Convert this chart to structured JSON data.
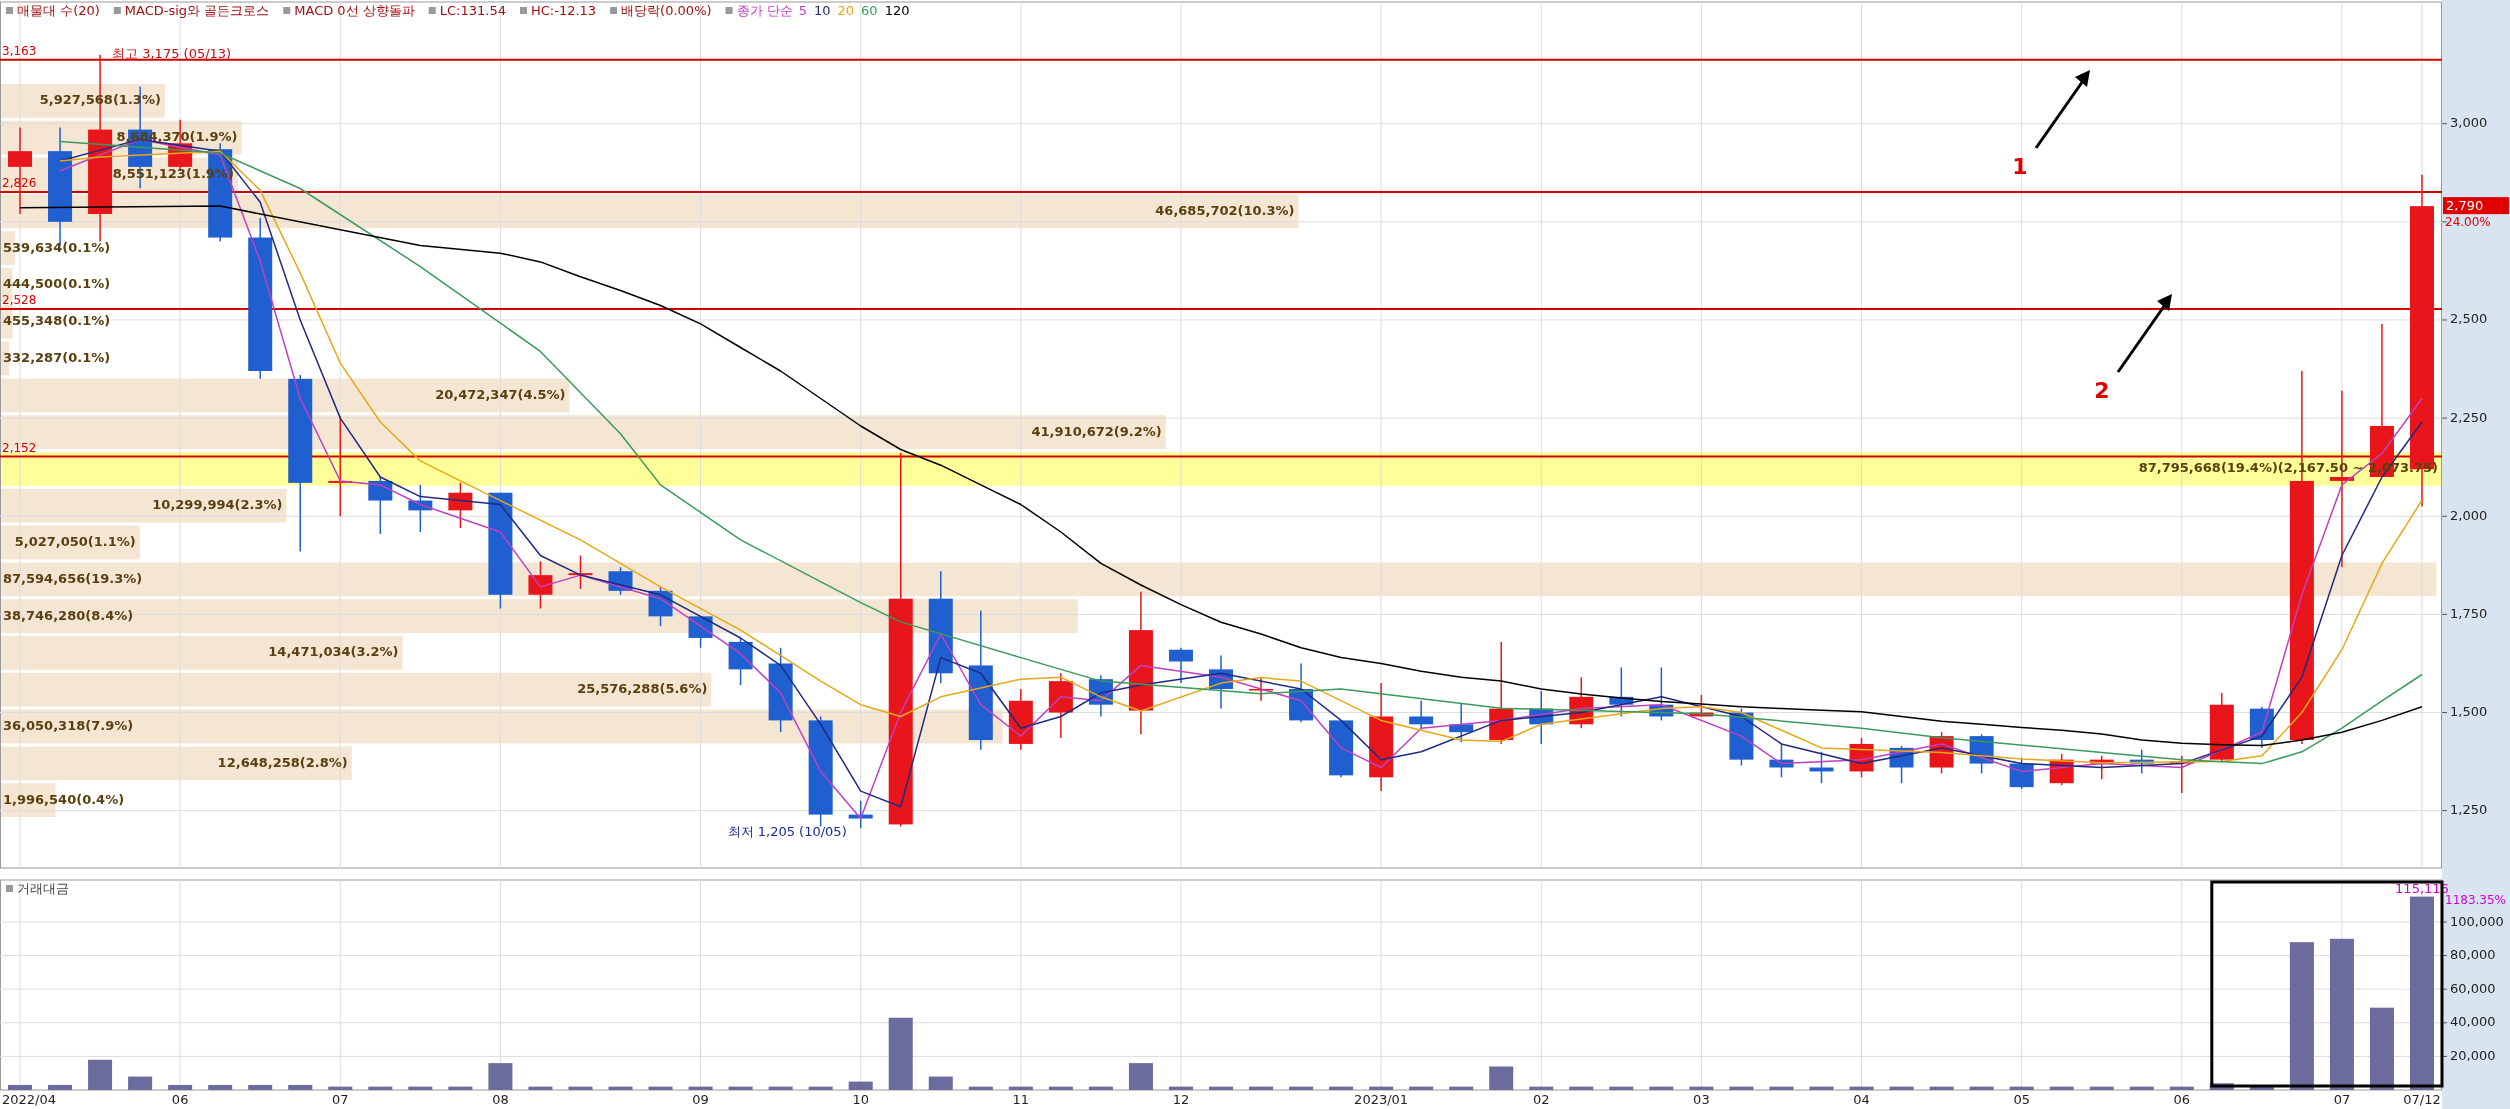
{
  "chart_data": [
    {
      "type": "candlestick",
      "categories": [
        null,
        null,
        null,
        null,
        null,
        null,
        null,
        null,
        null,
        null,
        null,
        null,
        null,
        null,
        null,
        null,
        null,
        null,
        null,
        null,
        null,
        null,
        null,
        null,
        null,
        null,
        null,
        null,
        null,
        null,
        null,
        null,
        null,
        null,
        null,
        null,
        null,
        null,
        null,
        null,
        null,
        null,
        null,
        null,
        null,
        null,
        null,
        null,
        null,
        null,
        null,
        null,
        null,
        null,
        null,
        null,
        null,
        null,
        null,
        null,
        null
      ],
      "ohlc": [
        [
          2890,
          2990,
          2770,
          2930
        ],
        [
          2930,
          2990,
          2690,
          2750
        ],
        [
          2770,
          3175,
          2700,
          2985
        ],
        [
          2985,
          3095,
          2835,
          2890
        ],
        [
          2890,
          3010,
          2880,
          2950
        ],
        [
          2935,
          2950,
          2700,
          2710
        ],
        [
          2710,
          2760,
          2350,
          2370
        ],
        [
          2350,
          2360,
          1910,
          2085
        ],
        [
          2085,
          2255,
          2000,
          2090
        ],
        [
          2090,
          2100,
          1955,
          2040
        ],
        [
          2040,
          2080,
          1960,
          2015
        ],
        [
          2015,
          2085,
          1970,
          2060
        ],
        [
          2060,
          2060,
          1765,
          1800
        ],
        [
          1800,
          1885,
          1765,
          1850
        ],
        [
          1850,
          1900,
          1815,
          1855
        ],
        [
          1860,
          1870,
          1800,
          1810
        ],
        [
          1810,
          1820,
          1720,
          1745
        ],
        [
          1745,
          1745,
          1665,
          1690
        ],
        [
          1680,
          1690,
          1570,
          1610
        ],
        [
          1625,
          1665,
          1450,
          1480
        ],
        [
          1480,
          1490,
          1210,
          1240
        ],
        [
          1240,
          1275,
          1205,
          1230
        ],
        [
          1215,
          2162,
          1210,
          1790
        ],
        [
          1790,
          1860,
          1575,
          1600
        ],
        [
          1620,
          1760,
          1405,
          1430
        ],
        [
          1420,
          1560,
          1405,
          1530
        ],
        [
          1500,
          1600,
          1435,
          1580
        ],
        [
          1585,
          1595,
          1490,
          1520
        ],
        [
          1505,
          1808,
          1445,
          1710
        ],
        [
          1660,
          1665,
          1575,
          1630
        ],
        [
          1610,
          1645,
          1510,
          1560
        ],
        [
          1560,
          1590,
          1530,
          1560
        ],
        [
          1560,
          1625,
          1475,
          1480
        ],
        [
          1480,
          1480,
          1335,
          1340
        ],
        [
          1335,
          1575,
          1300,
          1490
        ],
        [
          1490,
          1530,
          1460,
          1470
        ],
        [
          1470,
          1525,
          1425,
          1450
        ],
        [
          1430,
          1680,
          1420,
          1510
        ],
        [
          1510,
          1555,
          1420,
          1470
        ],
        [
          1470,
          1590,
          1460,
          1540
        ],
        [
          1540,
          1615,
          1490,
          1520
        ],
        [
          1520,
          1615,
          1480,
          1490
        ],
        [
          1490,
          1545,
          1490,
          1500
        ],
        [
          1500,
          1510,
          1365,
          1380
        ],
        [
          1380,
          1420,
          1335,
          1360
        ],
        [
          1360,
          1400,
          1320,
          1350
        ],
        [
          1350,
          1435,
          1335,
          1420
        ],
        [
          1410,
          1415,
          1320,
          1360
        ],
        [
          1360,
          1450,
          1345,
          1440
        ],
        [
          1440,
          1445,
          1345,
          1370
        ],
        [
          1370,
          1385,
          1305,
          1310
        ],
        [
          1320,
          1395,
          1315,
          1380
        ],
        [
          1370,
          1390,
          1330,
          1380
        ],
        [
          1380,
          1405,
          1345,
          1370
        ],
        [
          1370,
          1390,
          1295,
          1375
        ],
        [
          1380,
          1550,
          1375,
          1520
        ],
        [
          1510,
          1515,
          1410,
          1430
        ],
        [
          1430,
          2370,
          1420,
          2090
        ],
        [
          2090,
          2320,
          1870,
          2100
        ],
        [
          2100,
          2490,
          2100,
          2230
        ],
        [
          2120,
          2870,
          2025,
          2790
        ]
      ],
      "colors": [
        "#e8161b",
        "#1f5fd0",
        "#e8161b",
        "#1f5fd0",
        "#e8161b",
        "#1f5fd0",
        "#1f5fd0",
        "#1f5fd0",
        "#e8161b",
        "#1f5fd0",
        "#1f5fd0",
        "#e8161b",
        "#1f5fd0",
        "#e8161b",
        "#e8161b",
        "#1f5fd0",
        "#1f5fd0",
        "#1f5fd0",
        "#1f5fd0",
        "#1f5fd0",
        "#1f5fd0",
        "#1f5fd0",
        "#e8161b",
        "#1f5fd0",
        "#1f5fd0",
        "#e8161b",
        "#e8161b",
        "#1f5fd0",
        "#e8161b",
        "#1f5fd0",
        "#1f5fd0",
        "#e8161b",
        "#1f5fd0",
        "#1f5fd0",
        "#e8161b",
        "#1f5fd0",
        "#1f5fd0",
        "#e8161b",
        "#1f5fd0",
        "#e8161b",
        "#1f5fd0",
        "#1f5fd0",
        "#e8161b",
        "#1f5fd0",
        "#1f5fd0",
        "#1f5fd0",
        "#e8161b",
        "#1f5fd0",
        "#e8161b",
        "#1f5fd0",
        "#1f5fd0",
        "#e8161b",
        "#e8161b",
        "#1f5fd0",
        "#e8161b",
        "#e8161b",
        "#1f5fd0",
        "#e8161b",
        "#e8161b",
        "#e8161b",
        "#e8161b"
      ],
      "value_labels": [
        null,
        null,
        null,
        null,
        null,
        null,
        null,
        null,
        null,
        null,
        null,
        null,
        null,
        null,
        null,
        null,
        null,
        null,
        null,
        null,
        null,
        null,
        null,
        null,
        null,
        null,
        null,
        null,
        null,
        null,
        null,
        null,
        null,
        null,
        null,
        null,
        null,
        null,
        null,
        null,
        null,
        null,
        null,
        null,
        null,
        null,
        null,
        null,
        null,
        null,
        null,
        null,
        null,
        null,
        null,
        null,
        null,
        null,
        null,
        null,
        "2,790"
      ],
      "ylim": [
        1104,
        3310
      ],
      "yticks": [
        {
          "value": 1250,
          "label": "1,250"
        },
        {
          "value": 1500,
          "label": "1,500"
        },
        {
          "value": 1750,
          "label": "1,750"
        },
        {
          "value": 2000,
          "label": "2,000"
        },
        {
          "value": 2250,
          "label": "2,250"
        },
        {
          "value": 2500,
          "label": "2,500"
        },
        {
          "value": 2750,
          "label": null
        },
        {
          "value": 3000,
          "label": "3,000"
        }
      ],
      "tick_labels": "y",
      "grid": true,
      "legend": "top left",
      "legend_title": "종가 단순",
      "series": [
        {
          "type": "line",
          "name": "5",
          "color": "#c040c0",
          "values": [
            null,
            2880,
            null,
            2960,
            null,
            2920,
            2650,
            2300,
            2090,
            2080,
            2030,
            null,
            1960,
            1820,
            1850,
            null,
            1790,
            null,
            1650,
            1550,
            1350,
            1230,
            1500,
            1700,
            1520,
            1440,
            1540,
            1530,
            1620,
            null,
            1590,
            null,
            1530,
            1410,
            1360,
            1460,
            null,
            1480,
            null,
            1510,
            null,
            1520,
            null,
            1440,
            1370,
            null,
            1380,
            null,
            1420,
            null,
            1350,
            null,
            1370,
            null,
            1360,
            null,
            1450,
            1800,
            2080,
            2160,
            2300
          ]
        },
        {
          "type": "line",
          "name": "10",
          "color": "#202a80",
          "values": [
            null,
            2905,
            null,
            2960,
            null,
            2930,
            2800,
            2500,
            2250,
            2100,
            2050,
            null,
            2030,
            1900,
            1850,
            null,
            1800,
            null,
            1690,
            1620,
            1470,
            1300,
            1260,
            1640,
            1600,
            1460,
            1490,
            1550,
            1570,
            null,
            1600,
            null,
            1560,
            1480,
            1380,
            1400,
            null,
            1480,
            null,
            1500,
            null,
            1540,
            null,
            1490,
            1420,
            null,
            1370,
            null,
            1410,
            null,
            1370,
            null,
            1360,
            null,
            1370,
            null,
            1440,
            1590,
            1900,
            2100,
            2240
          ]
        },
        {
          "type": "line",
          "name": "20",
          "color": "#e6a817",
          "values": [
            null,
            2905,
            2915,
            null,
            null,
            2930,
            2830,
            2620,
            2390,
            2240,
            2141,
            2090,
            null,
            null,
            1940,
            null,
            1820,
            null,
            1710,
            null,
            1580,
            1520,
            1490,
            1540,
            null,
            1585,
            1590,
            1540,
            1504,
            null,
            1575,
            1589,
            1580,
            null,
            1480,
            null,
            1430,
            1426,
            1470,
            null,
            null,
            1510,
            1515,
            1500,
            null,
            1410,
            null,
            null,
            1398,
            1390,
            1382,
            null,
            1372,
            null,
            null,
            1375,
            1390,
            1500,
            1660,
            1880,
            2041
          ]
        },
        {
          "type": "line",
          "name": "60",
          "color": "#3a9a5a",
          "values": [
            null,
            2955,
            null,
            null,
            null,
            2925,
            null,
            2835,
            null,
            null,
            2636,
            null,
            null,
            2420,
            null,
            2210,
            2080,
            null,
            1940,
            null,
            null,
            1780,
            1731,
            null,
            null,
            1640,
            null,
            1580,
            null,
            null,
            null,
            1548,
            null,
            1560,
            null,
            null,
            null,
            1511,
            null,
            null,
            null,
            null,
            1497,
            null,
            null,
            null,
            1460,
            null,
            1436,
            null,
            null,
            null,
            1398,
            null,
            1380,
            null,
            1370,
            1400,
            1460,
            1530,
            1597
          ]
        },
        {
          "type": "line",
          "name": "120",
          "color": "#000000",
          "values": [
            2786,
            null,
            null,
            null,
            null,
            2790,
            null,
            null,
            null,
            null,
            2690,
            null,
            2670,
            2648,
            2610,
            2575,
            2537,
            2490,
            2430,
            2370,
            2300,
            2230,
            2170,
            2130,
            2080,
            2030,
            1960,
            1880,
            1825,
            1775,
            1730,
            1700,
            1665,
            1640,
            1625,
            1605,
            1590,
            1580,
            1560,
            1547,
            1537,
            1528,
            1522,
            1515,
            1510,
            1506,
            1502,
            1490,
            1478,
            1470,
            1462,
            1455,
            1445,
            1430,
            1422,
            1418,
            1416,
            1430,
            1450,
            1480,
            1515
          ]
        }
      ],
      "ref_lines": [
        {
          "axis": "y",
          "value": 3163,
          "label": "3,163",
          "color": "#d40000"
        },
        {
          "axis": "y",
          "value": 2826,
          "label": "2,826",
          "color": "#d40000"
        },
        {
          "axis": "y",
          "value": 2528,
          "label": "2,528",
          "color": "#d40000"
        },
        {
          "axis": "y",
          "value": 2152,
          "label": "2,152",
          "color": "#d40000"
        }
      ],
      "annotations": [
        "매물대 수(20)",
        "MACD-sig와 골든크로스",
        "MACD 0선 상향돌파",
        "LC:131.54",
        "HC:-12.13",
        "배당락(0.00%)",
        "1",
        "2",
        "24.00%",
        "최고 3,175 (05/13)",
        "최저 1,205 (10/05)"
      ]
    },
    {
      "type": "bar",
      "orientation": "horizontal",
      "categories": [
        null,
        null,
        null,
        null,
        null,
        null,
        null,
        null,
        null,
        null,
        null,
        null,
        null,
        null,
        null,
        null,
        null,
        null,
        null,
        null
      ],
      "values": [
        5927568,
        8684370,
        8551123,
        46685702,
        539634,
        444500,
        455348,
        332287,
        20472347,
        41910672,
        87795668,
        10299994,
        5027050,
        87594656,
        38746280,
        14471034,
        25576288,
        36050318,
        12648258,
        1996540
      ],
      "colors": [
        "#f5e6d3",
        "#f5e6d3",
        "#f5e6d3",
        "#f5e6d3",
        "#f5e6d3",
        "#f5e6d3",
        "#f5e6d3",
        "#f5e6d3",
        "#f5e6d3",
        "#f5e6d3",
        "#ffff99",
        "#f5e6d3",
        "#f5e6d3",
        "#f5e6d3",
        "#f5e6d3",
        "#f5e6d3",
        "#f5e6d3",
        "#f5e6d3",
        "#f5e6d3",
        "#f5e6d3"
      ],
      "value_labels": [
        "5,927,568(1.3%)",
        "8,684,370(1.9%)",
        "8,551,123(1.9%)",
        "46,685,702(10.3%)",
        "539,634(0.1%)",
        "444,500(0.1%)",
        "455,348(0.1%)",
        "332,287(0.1%)",
        "20,472,347(4.5%)",
        "41,910,672(9.2%)",
        "87,795,668(19.4%)(2,167.50 ~ 2,073.75)",
        "10,299,994(2.3%)",
        "5,027,050(1.1%)",
        "87,594,656(19.3%)",
        "38,746,280(8.4%)",
        "14,471,034(3.2%)",
        "25,576,288(5.6%)",
        "36,050,318(7.9%)",
        "12,648,258(2.8%)",
        "1,996,540(0.4%)"
      ],
      "tick_labels": false
    },
    {
      "type": "bar",
      "title": "거래대금",
      "categories": [
        "2022/04",
        null,
        null,
        null,
        "06",
        null,
        null,
        null,
        "07",
        null,
        null,
        null,
        "08",
        null,
        null,
        null,
        null,
        "09",
        null,
        null,
        null,
        "10",
        null,
        null,
        null,
        "11",
        null,
        null,
        null,
        "12",
        null,
        null,
        null,
        null,
        "2023/01",
        null,
        null,
        null,
        "02",
        null,
        null,
        null,
        "03",
        null,
        null,
        null,
        "04",
        null,
        null,
        null,
        "05",
        null,
        null,
        null,
        "06",
        null,
        null,
        null,
        "07",
        null,
        "07/12"
      ],
      "values": [
        3000,
        3000,
        18000,
        8000,
        3000,
        3000,
        3000,
        3000,
        2000,
        2000,
        2000,
        2000,
        16000,
        2000,
        2000,
        2000,
        2000,
        2000,
        2000,
        2000,
        2000,
        5000,
        43000,
        8000,
        2000,
        2000,
        2000,
        2000,
        16000,
        2000,
        2000,
        2000,
        2000,
        2000,
        2000,
        2000,
        2000,
        14000,
        2000,
        2000,
        2000,
        2000,
        2000,
        2000,
        2000,
        2000,
        2000,
        2000,
        2000,
        2000,
        2000,
        2000,
        2000,
        2000,
        2000,
        4000,
        2000,
        88000,
        90000,
        49000,
        115116
      ],
      "value_labels": [
        null,
        null,
        null,
        null,
        null,
        null,
        null,
        null,
        null,
        null,
        null,
        null,
        null,
        null,
        null,
        null,
        null,
        null,
        null,
        null,
        null,
        null,
        null,
        null,
        null,
        null,
        null,
        null,
        null,
        null,
        null,
        null,
        null,
        null,
        null,
        null,
        null,
        null,
        null,
        null,
        null,
        null,
        null,
        null,
        null,
        null,
        null,
        null,
        null,
        null,
        null,
        null,
        null,
        null,
        null,
        null,
        null,
        null,
        null,
        null,
        "115,116"
      ],
      "color": "#6b6b9e",
      "ylim": [
        0,
        125000
      ],
      "yticks": [
        {
          "value": 20000,
          "label": "20,000"
        },
        {
          "value": 40000,
          "label": "40,000"
        },
        {
          "value": 60000,
          "label": "60,000"
        },
        {
          "value": 80000,
          "label": "80,000"
        },
        {
          "value": 100000,
          "label": "100,000"
        }
      ],
      "grid": true,
      "annotations": [
        "1183.35%"
      ]
    }
  ]
}
